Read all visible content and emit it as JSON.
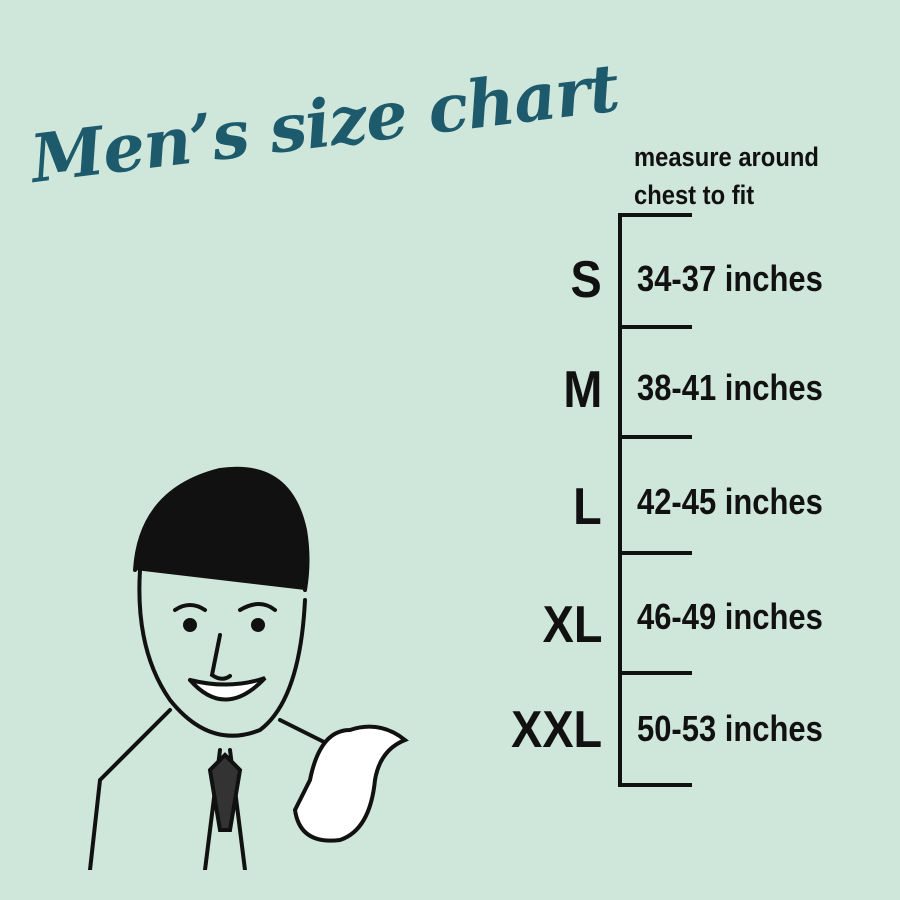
{
  "title": "Men’s size chart",
  "header": {
    "line1": "measure around",
    "line2": "chest to fit"
  },
  "sizes": [
    {
      "label": "S",
      "range": "34-37 inches"
    },
    {
      "label": "M",
      "range": "38-41 inches"
    },
    {
      "label": "L",
      "range": "42-45 inches"
    },
    {
      "label": "XL",
      "range": "46-49 inches"
    },
    {
      "label": "XXL",
      "range": "50-53 inches"
    }
  ],
  "colors": {
    "background": "#cfe6da",
    "title": "#1d5a6c",
    "text": "#111111"
  },
  "illustration": "retro-man-thumbs-pointing"
}
